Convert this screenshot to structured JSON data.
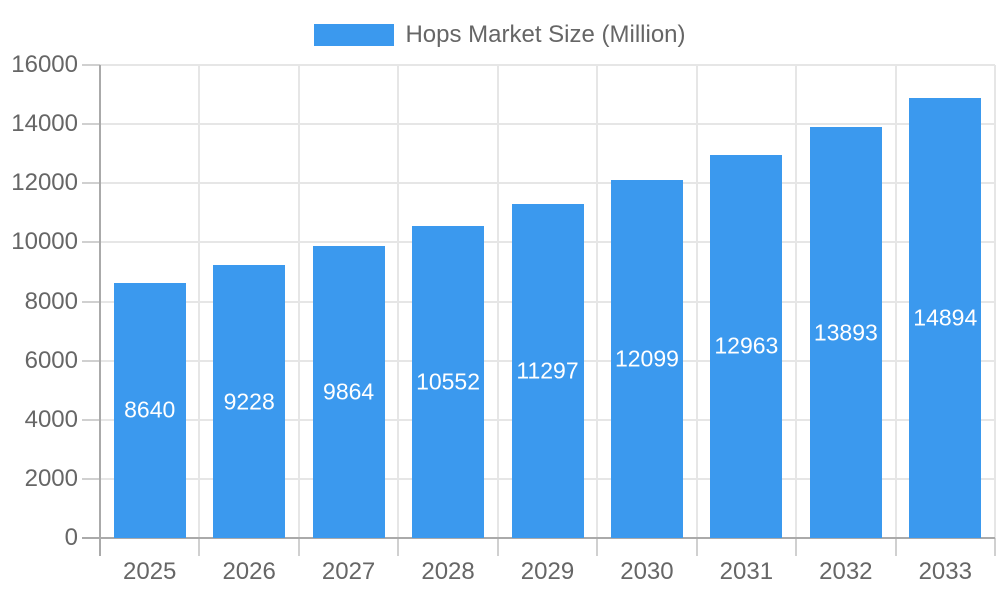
{
  "chart_data": {
    "type": "bar",
    "title": "",
    "legend_entries": [
      "Hops Market Size (Million)"
    ],
    "legend_position": "top",
    "categories": [
      "2025",
      "2026",
      "2027",
      "2028",
      "2029",
      "2030",
      "2031",
      "2032",
      "2033"
    ],
    "values": [
      8640,
      9228,
      9864,
      10552,
      11297,
      12099,
      12963,
      13893,
      14894
    ],
    "xlabel": "",
    "ylabel": "",
    "ylim": [
      0,
      16000
    ],
    "yticks": [
      0,
      2000,
      4000,
      6000,
      8000,
      10000,
      12000,
      14000,
      16000
    ],
    "grid": "both",
    "value_labels": "inside-center-white",
    "bar_color": "#3B99EE",
    "value_label_color": "#FFFFFF",
    "axis_text_color": "#666666",
    "grid_color": "#E6E6E6",
    "axis_line_color": "#AAAAAA",
    "tick_color": "#D0D0D0",
    "background_color": "#FFFFFF"
  }
}
